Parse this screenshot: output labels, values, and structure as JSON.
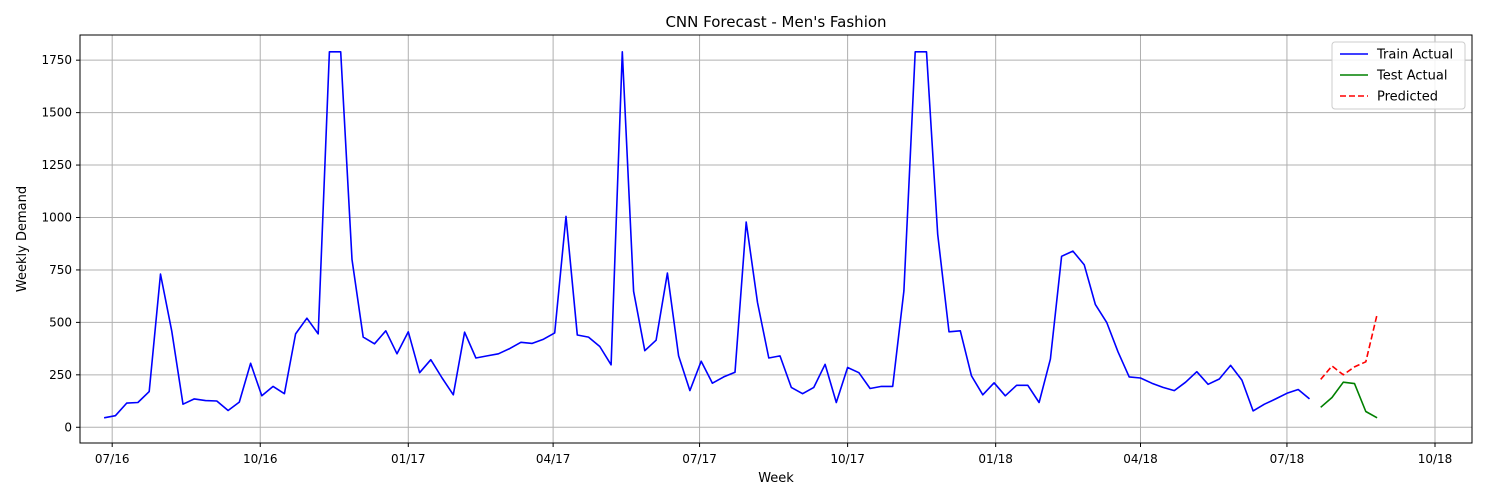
{
  "chart_data": {
    "type": "line",
    "title": "CNN Forecast - Men's Fashion",
    "xlabel": "Week",
    "ylabel": "Weekly Demand",
    "grid": true,
    "legend_position": "top-right",
    "x_ticks": [
      "07/16",
      "10/16",
      "01/17",
      "04/17",
      "07/17",
      "10/17",
      "01/18",
      "04/18",
      "07/18",
      "10/18"
    ],
    "y_ticks": [
      0,
      250,
      500,
      750,
      1000,
      1250,
      1500,
      1750
    ],
    "series": [
      {
        "name": "Train Actual",
        "color": "#0000ff",
        "style": "solid",
        "x": [
          "2016-06-26",
          "2016-07-03",
          "2016-07-10",
          "2016-07-17",
          "2016-07-24",
          "2016-07-31",
          "2016-08-07",
          "2016-08-14",
          "2016-08-21",
          "2016-08-28",
          "2016-09-04",
          "2016-09-11",
          "2016-09-18",
          "2016-09-25",
          "2016-10-02",
          "2016-10-09",
          "2016-10-16",
          "2016-10-23",
          "2016-10-30",
          "2016-11-06",
          "2016-11-13",
          "2016-11-20",
          "2016-11-27",
          "2016-12-04",
          "2016-12-11",
          "2016-12-18",
          "2016-12-25",
          "2017-01-01",
          "2017-01-08",
          "2017-01-15",
          "2017-01-22",
          "2017-01-29",
          "2017-02-05",
          "2017-02-12",
          "2017-02-19",
          "2017-02-26",
          "2017-03-05",
          "2017-03-12",
          "2017-03-19",
          "2017-03-26",
          "2017-04-02",
          "2017-04-09",
          "2017-04-16",
          "2017-04-23",
          "2017-04-30",
          "2017-05-07",
          "2017-05-14",
          "2017-05-21",
          "2017-05-28",
          "2017-06-04",
          "2017-06-11",
          "2017-06-18",
          "2017-06-25",
          "2017-07-02",
          "2017-07-09",
          "2017-07-16",
          "2017-07-23",
          "2017-07-30",
          "2017-08-06",
          "2017-08-13",
          "2017-08-20",
          "2017-08-27",
          "2017-09-03",
          "2017-09-10",
          "2017-09-17",
          "2017-09-24",
          "2017-10-01",
          "2017-10-08",
          "2017-10-15",
          "2017-10-22",
          "2017-10-29",
          "2017-11-05",
          "2017-11-12",
          "2017-11-19",
          "2017-11-26",
          "2017-12-03",
          "2017-12-10",
          "2017-12-17",
          "2017-12-24",
          "2017-12-31",
          "2018-01-07",
          "2018-01-14",
          "2018-01-21",
          "2018-01-28",
          "2018-02-04",
          "2018-02-11",
          "2018-02-18",
          "2018-02-25",
          "2018-03-04",
          "2018-03-11",
          "2018-03-18",
          "2018-03-25",
          "2018-04-01",
          "2018-04-08",
          "2018-04-15",
          "2018-04-22",
          "2018-04-29",
          "2018-05-06",
          "2018-05-13",
          "2018-05-20",
          "2018-05-27",
          "2018-06-03",
          "2018-06-10",
          "2018-06-17",
          "2018-06-24",
          "2018-07-01",
          "2018-07-08",
          "2018-07-15"
        ],
        "y": [
          45,
          55,
          115,
          118,
          170,
          730,
          460,
          110,
          135,
          127,
          125,
          80,
          120,
          305,
          150,
          195,
          160,
          445,
          520,
          445,
          1790,
          1790,
          800,
          430,
          398,
          460,
          350,
          455,
          260,
          322,
          235,
          155,
          453,
          330,
          340,
          350,
          375,
          405,
          400,
          420,
          450,
          1005,
          440,
          430,
          385,
          298,
          1790,
          648,
          365,
          415,
          735,
          340,
          175,
          315,
          210,
          240,
          262,
          978,
          595,
          330,
          340,
          190,
          160,
          190,
          300,
          118,
          285,
          260,
          185,
          195,
          195,
          650,
          1790,
          1790,
          920,
          455,
          460,
          245,
          155,
          212,
          150,
          200,
          200,
          118,
          325,
          815,
          840,
          775,
          585,
          500,
          360,
          240,
          235,
          210,
          190,
          175,
          215,
          265,
          205,
          230,
          295,
          225,
          78,
          110,
          135,
          162,
          180,
          135
        ]
      },
      {
        "name": "Test Actual",
        "color": "#008000",
        "style": "solid",
        "x": [
          "2018-07-22",
          "2018-07-29",
          "2018-08-05",
          "2018-08-12",
          "2018-08-19",
          "2018-08-26"
        ],
        "y": [
          95,
          142,
          215,
          208,
          75,
          45
        ]
      },
      {
        "name": "Predicted",
        "color": "#ff0000",
        "style": "dashed",
        "x": [
          "2018-07-22",
          "2018-07-29",
          "2018-08-05",
          "2018-08-12",
          "2018-08-19",
          "2018-08-26"
        ],
        "y": [
          228,
          292,
          250,
          288,
          312,
          538
        ]
      }
    ]
  }
}
